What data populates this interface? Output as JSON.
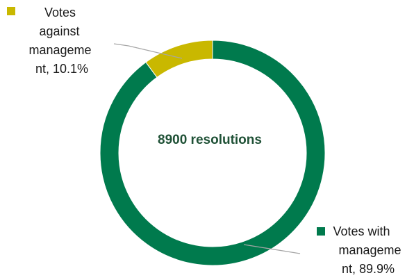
{
  "chart_data": {
    "type": "pie",
    "variant": "donut",
    "center_text": "8900 resolutions",
    "slices": [
      {
        "label_lines": [
          "Votes with",
          "manageme",
          "nt, 89.9%"
        ],
        "value": 89.9,
        "color": "#007A4D"
      },
      {
        "label_lines": [
          "Votes",
          "against",
          "manageme",
          "nt, 10.1%"
        ],
        "value": 10.1,
        "color": "#C9B800"
      }
    ]
  },
  "colors": {
    "center_text": "#1f5136",
    "leader_line": "#a6a6a6"
  }
}
